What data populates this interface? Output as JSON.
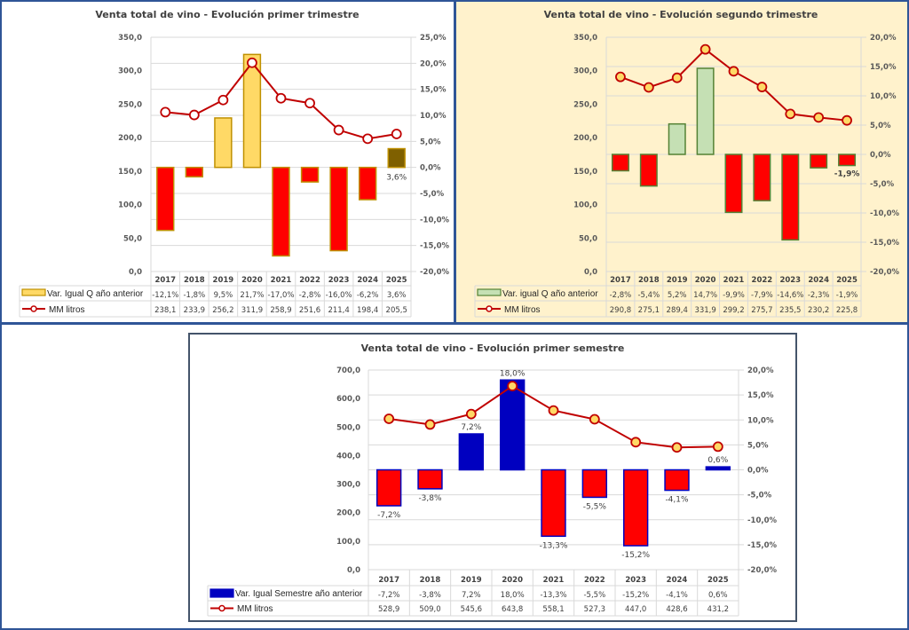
{
  "charts": [
    {
      "title": "Venta total de vino - Evolución primer trimestre",
      "left_ticks": [
        "350,0",
        "300,0",
        "250,0",
        "200,0",
        "150,0",
        "100,0",
        "50,0",
        "0,0"
      ],
      "right_ticks": [
        "25,0%",
        "20,0%",
        "15,0%",
        "10,0%",
        "5,0%",
        "0,0%",
        "-5,0%",
        "-10,0%",
        "-15,0%",
        "-20,0%"
      ],
      "bar_legend": "Var. Igual Q año anterior",
      "line_legend": "MM litros",
      "bar_row": [
        "-12,1%",
        "-1,8%",
        "9,5%",
        "21,7%",
        "-17,0%",
        "-2,8%",
        "-16,0%",
        "-6,2%",
        "3,6%"
      ],
      "line_row": [
        "238,1",
        "233,9",
        "256,2",
        "311,9",
        "258,9",
        "251,6",
        "211,4",
        "198,4",
        "205,5"
      ],
      "data_labels": {
        "8": "3,6%"
      }
    },
    {
      "title": "Venta total de vino - Evolución segundo trimestre",
      "left_ticks": [
        "350,0",
        "300,0",
        "250,0",
        "200,0",
        "150,0",
        "100,0",
        "50,0",
        "0,0"
      ],
      "right_ticks": [
        "20,0%",
        "15,0%",
        "10,0%",
        "5,0%",
        "0,0%",
        "-5,0%",
        "-10,0%",
        "-15,0%",
        "-20,0%"
      ],
      "bar_legend": "Var. igual Q año anterior",
      "line_legend": "MM litros",
      "bar_row": [
        "-2,8%",
        "-5,4%",
        "5,2%",
        "14,7%",
        "-9,9%",
        "-7,9%",
        "-14,6%",
        "-2,3%",
        "-1,9%"
      ],
      "line_row": [
        "290,8",
        "275,1",
        "289,4",
        "331,9",
        "299,2",
        "275,7",
        "235,5",
        "230,2",
        "225,8"
      ],
      "data_labels": {
        "8": "-1,9%"
      }
    },
    {
      "title": "Venta total de vino - Evolución primer semestre",
      "left_ticks": [
        "700,0",
        "600,0",
        "500,0",
        "400,0",
        "300,0",
        "200,0",
        "100,0",
        "0,0"
      ],
      "right_ticks": [
        "20,0%",
        "15,0%",
        "10,0%",
        "5,0%",
        "0,0%",
        "-5,0%",
        "-10,0%",
        "-15,0%",
        "-20,0%"
      ],
      "bar_legend": "Var. Igual Semestre año anterior",
      "line_legend": "MM litros",
      "bar_row": [
        "-7,2%",
        "-3,8%",
        "7,2%",
        "18,0%",
        "-13,3%",
        "-5,5%",
        "-15,2%",
        "-4,1%",
        "0,6%"
      ],
      "line_row": [
        "528,9",
        "509,0",
        "545,6",
        "643,8",
        "558,1",
        "527,3",
        "447,0",
        "428,6",
        "431,2"
      ],
      "data_labels": {
        "0": "-7,2%",
        "1": "-3,8%",
        "2": "7,2%",
        "3": "18,0%",
        "4": "-13,3%",
        "5": "-5,5%",
        "6": "-15,2%",
        "7": "-4,1%",
        "8": "0,6%"
      }
    }
  ],
  "colors": {
    "c1_pos": "#ffd966",
    "c1_pos_border": "#bf9000",
    "c1_neg": "#ff0000",
    "c1_last": "#7f6000",
    "c2_pos": "#c5e0b4",
    "c2_border": "#548235",
    "c2_neg": "#ff0000",
    "c3_pos": "#0000c0",
    "c3_neg": "#ff0000",
    "c3_neg_border": "#0000c0",
    "line": "#c00000",
    "marker_fill_1": "#ffffff",
    "marker_fill_23": "#ffd966"
  },
  "chart_data": [
    {
      "type": "bar",
      "title": "Venta total de vino - Evolución primer trimestre",
      "categories": [
        "2017",
        "2018",
        "2019",
        "2020",
        "2021",
        "2022",
        "2023",
        "2024",
        "2025"
      ],
      "series": [
        {
          "name": "Var. Igual Q año anterior",
          "axis": "right",
          "kind": "bar",
          "values": [
            -12.1,
            -1.8,
            9.5,
            21.7,
            -17.0,
            -2.8,
            -16.0,
            -6.2,
            3.6
          ]
        },
        {
          "name": "MM litros",
          "axis": "left",
          "kind": "line",
          "values": [
            238.1,
            233.9,
            256.2,
            311.9,
            258.9,
            251.6,
            211.4,
            198.4,
            205.5
          ]
        }
      ],
      "ylim_left": [
        0,
        350
      ],
      "ylim_right": [
        -20,
        25
      ],
      "grid": true,
      "legend": "data-table"
    },
    {
      "type": "bar",
      "title": "Venta total de vino - Evolución segundo trimestre",
      "categories": [
        "2017",
        "2018",
        "2019",
        "2020",
        "2021",
        "2022",
        "2023",
        "2024",
        "2025"
      ],
      "series": [
        {
          "name": "Var. igual Q año anterior",
          "axis": "right",
          "kind": "bar",
          "values": [
            -2.8,
            -5.4,
            5.2,
            14.7,
            -9.9,
            -7.9,
            -14.6,
            -2.3,
            -1.9
          ]
        },
        {
          "name": "MM litros",
          "axis": "left",
          "kind": "line",
          "values": [
            290.8,
            275.1,
            289.4,
            331.9,
            299.2,
            275.7,
            235.5,
            230.2,
            225.8
          ]
        }
      ],
      "ylim_left": [
        0,
        350
      ],
      "ylim_right": [
        -20,
        20
      ],
      "grid": true,
      "legend": "data-table"
    },
    {
      "type": "bar",
      "title": "Venta total de vino - Evolución primer semestre",
      "categories": [
        "2017",
        "2018",
        "2019",
        "2020",
        "2021",
        "2022",
        "2023",
        "2024",
        "2025"
      ],
      "series": [
        {
          "name": "Var. Igual Semestre año anterior",
          "axis": "right",
          "kind": "bar",
          "values": [
            -7.2,
            -3.8,
            7.2,
            18.0,
            -13.3,
            -5.5,
            -15.2,
            -4.1,
            0.6
          ]
        },
        {
          "name": "MM litros",
          "axis": "left",
          "kind": "line",
          "values": [
            528.9,
            509.0,
            545.6,
            643.8,
            558.1,
            527.3,
            447.0,
            428.6,
            431.2
          ]
        }
      ],
      "ylim_left": [
        0,
        700
      ],
      "ylim_right": [
        -20,
        20
      ],
      "grid": true,
      "legend": "data-table"
    }
  ]
}
